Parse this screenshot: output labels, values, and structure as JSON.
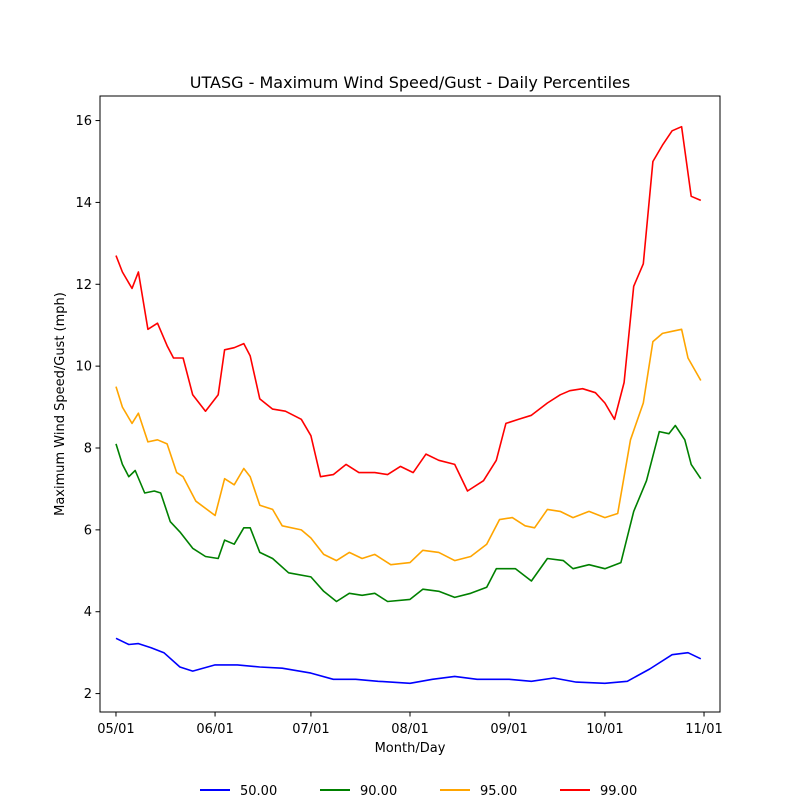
{
  "chart_data": {
    "type": "line",
    "title": "UTASG - Maximum Wind Speed/Gust - Daily Percentiles",
    "xlabel": "Month/Day",
    "ylabel": "Maximum Wind Speed/Gust (mph)",
    "x_ticks": [
      "05/01",
      "06/01",
      "07/01",
      "08/01",
      "09/01",
      "10/01",
      "11/01"
    ],
    "y_ticks": [
      "2",
      "4",
      "6",
      "8",
      "10",
      "12",
      "14",
      "16"
    ],
    "xlim": [
      "04/26",
      "11/06"
    ],
    "ylim": [
      1.55,
      16.6
    ],
    "grid": false,
    "legend_placement": "bottom-center",
    "series": [
      {
        "name": "50.00",
        "color": "#0000ff",
        "points": [
          [
            "05/01",
            3.35
          ],
          [
            "05/05",
            3.2
          ],
          [
            "05/08",
            3.22
          ],
          [
            "05/12",
            3.12
          ],
          [
            "05/16",
            3.0
          ],
          [
            "05/21",
            2.65
          ],
          [
            "05/25",
            2.55
          ],
          [
            "06/01",
            2.7
          ],
          [
            "06/08",
            2.7
          ],
          [
            "06/15",
            2.65
          ],
          [
            "06/22",
            2.62
          ],
          [
            "07/01",
            2.5
          ],
          [
            "07/08",
            2.35
          ],
          [
            "07/15",
            2.35
          ],
          [
            "07/22",
            2.3
          ],
          [
            "08/01",
            2.25
          ],
          [
            "08/08",
            2.35
          ],
          [
            "08/15",
            2.42
          ],
          [
            "08/22",
            2.35
          ],
          [
            "09/01",
            2.35
          ],
          [
            "09/08",
            2.3
          ],
          [
            "09/15",
            2.38
          ],
          [
            "09/22",
            2.28
          ],
          [
            "10/01",
            2.25
          ],
          [
            "10/08",
            2.3
          ],
          [
            "10/15",
            2.6
          ],
          [
            "10/22",
            2.95
          ],
          [
            "10/27",
            3.0
          ],
          [
            "10/31",
            2.85
          ]
        ]
      },
      {
        "name": "90.00",
        "color": "#008000",
        "points": [
          [
            "05/01",
            8.1
          ],
          [
            "05/03",
            7.6
          ],
          [
            "05/05",
            7.3
          ],
          [
            "05/07",
            7.45
          ],
          [
            "05/10",
            6.9
          ],
          [
            "05/13",
            6.95
          ],
          [
            "05/15",
            6.9
          ],
          [
            "05/18",
            6.2
          ],
          [
            "05/21",
            5.95
          ],
          [
            "05/25",
            5.55
          ],
          [
            "05/29",
            5.35
          ],
          [
            "06/02",
            5.3
          ],
          [
            "06/04",
            5.75
          ],
          [
            "06/07",
            5.65
          ],
          [
            "06/10",
            6.05
          ],
          [
            "06/12",
            6.05
          ],
          [
            "06/15",
            5.45
          ],
          [
            "06/19",
            5.3
          ],
          [
            "06/24",
            4.95
          ],
          [
            "07/01",
            4.85
          ],
          [
            "07/05",
            4.5
          ],
          [
            "07/09",
            4.25
          ],
          [
            "07/13",
            4.45
          ],
          [
            "07/17",
            4.4
          ],
          [
            "07/21",
            4.45
          ],
          [
            "07/25",
            4.25
          ],
          [
            "08/01",
            4.3
          ],
          [
            "08/05",
            4.55
          ],
          [
            "08/10",
            4.5
          ],
          [
            "08/15",
            4.35
          ],
          [
            "08/20",
            4.45
          ],
          [
            "08/25",
            4.6
          ],
          [
            "08/28",
            5.05
          ],
          [
            "09/03",
            5.05
          ],
          [
            "09/08",
            4.75
          ],
          [
            "09/13",
            5.3
          ],
          [
            "09/18",
            5.25
          ],
          [
            "09/21",
            5.05
          ],
          [
            "09/26",
            5.15
          ],
          [
            "10/01",
            5.05
          ],
          [
            "10/06",
            5.2
          ],
          [
            "10/10",
            6.45
          ],
          [
            "10/14",
            7.2
          ],
          [
            "10/18",
            8.4
          ],
          [
            "10/21",
            8.35
          ],
          [
            "10/23",
            8.55
          ],
          [
            "10/26",
            8.2
          ],
          [
            "10/28",
            7.6
          ],
          [
            "10/31",
            7.25
          ]
        ]
      },
      {
        "name": "95.00",
        "color": "#ffa500",
        "points": [
          [
            "05/01",
            9.5
          ],
          [
            "05/03",
            9.0
          ],
          [
            "05/06",
            8.6
          ],
          [
            "05/08",
            8.85
          ],
          [
            "05/11",
            8.15
          ],
          [
            "05/14",
            8.2
          ],
          [
            "05/17",
            8.1
          ],
          [
            "05/20",
            7.4
          ],
          [
            "05/22",
            7.3
          ],
          [
            "05/26",
            6.7
          ],
          [
            "06/01",
            6.35
          ],
          [
            "06/04",
            7.25
          ],
          [
            "06/07",
            7.1
          ],
          [
            "06/10",
            7.5
          ],
          [
            "06/12",
            7.3
          ],
          [
            "06/15",
            6.6
          ],
          [
            "06/19",
            6.5
          ],
          [
            "06/22",
            6.1
          ],
          [
            "06/28",
            6.0
          ],
          [
            "07/01",
            5.8
          ],
          [
            "07/05",
            5.4
          ],
          [
            "07/09",
            5.25
          ],
          [
            "07/13",
            5.45
          ],
          [
            "07/17",
            5.3
          ],
          [
            "07/21",
            5.4
          ],
          [
            "07/26",
            5.15
          ],
          [
            "08/01",
            5.2
          ],
          [
            "08/05",
            5.5
          ],
          [
            "08/10",
            5.45
          ],
          [
            "08/15",
            5.25
          ],
          [
            "08/20",
            5.35
          ],
          [
            "08/25",
            5.65
          ],
          [
            "08/29",
            6.25
          ],
          [
            "09/02",
            6.3
          ],
          [
            "09/06",
            6.1
          ],
          [
            "09/09",
            6.05
          ],
          [
            "09/13",
            6.5
          ],
          [
            "09/17",
            6.45
          ],
          [
            "09/21",
            6.3
          ],
          [
            "09/26",
            6.45
          ],
          [
            "10/01",
            6.3
          ],
          [
            "10/05",
            6.4
          ],
          [
            "10/09",
            8.2
          ],
          [
            "10/13",
            9.1
          ],
          [
            "10/16",
            10.6
          ],
          [
            "10/19",
            10.8
          ],
          [
            "10/22",
            10.85
          ],
          [
            "10/25",
            10.9
          ],
          [
            "10/27",
            10.2
          ],
          [
            "10/31",
            9.65
          ]
        ]
      },
      {
        "name": "99.00",
        "color": "#ff0000",
        "points": [
          [
            "05/01",
            12.7
          ],
          [
            "05/03",
            12.3
          ],
          [
            "05/06",
            11.9
          ],
          [
            "05/08",
            12.3
          ],
          [
            "05/11",
            10.9
          ],
          [
            "05/14",
            11.05
          ],
          [
            "05/17",
            10.5
          ],
          [
            "05/19",
            10.2
          ],
          [
            "05/22",
            10.2
          ],
          [
            "05/25",
            9.3
          ],
          [
            "05/29",
            8.9
          ],
          [
            "06/02",
            9.3
          ],
          [
            "06/04",
            10.4
          ],
          [
            "06/07",
            10.45
          ],
          [
            "06/10",
            10.55
          ],
          [
            "06/12",
            10.25
          ],
          [
            "06/15",
            9.2
          ],
          [
            "06/19",
            8.95
          ],
          [
            "06/23",
            8.9
          ],
          [
            "06/28",
            8.7
          ],
          [
            "07/01",
            8.3
          ],
          [
            "07/04",
            7.3
          ],
          [
            "07/08",
            7.35
          ],
          [
            "07/12",
            7.6
          ],
          [
            "07/16",
            7.4
          ],
          [
            "07/21",
            7.4
          ],
          [
            "07/25",
            7.35
          ],
          [
            "07/29",
            7.55
          ],
          [
            "08/02",
            7.4
          ],
          [
            "08/06",
            7.85
          ],
          [
            "08/10",
            7.7
          ],
          [
            "08/15",
            7.6
          ],
          [
            "08/19",
            6.95
          ],
          [
            "08/24",
            7.2
          ],
          [
            "08/28",
            7.7
          ],
          [
            "08/31",
            8.6
          ],
          [
            "09/04",
            8.7
          ],
          [
            "09/08",
            8.8
          ],
          [
            "09/13",
            9.1
          ],
          [
            "09/17",
            9.3
          ],
          [
            "09/20",
            9.4
          ],
          [
            "09/24",
            9.45
          ],
          [
            "09/28",
            9.35
          ],
          [
            "10/01",
            9.1
          ],
          [
            "10/04",
            8.7
          ],
          [
            "10/07",
            9.6
          ],
          [
            "10/10",
            11.95
          ],
          [
            "10/13",
            12.5
          ],
          [
            "10/16",
            15.0
          ],
          [
            "10/19",
            15.4
          ],
          [
            "10/22",
            15.75
          ],
          [
            "10/25",
            15.85
          ],
          [
            "10/28",
            14.15
          ],
          [
            "10/31",
            14.05
          ]
        ]
      }
    ]
  }
}
